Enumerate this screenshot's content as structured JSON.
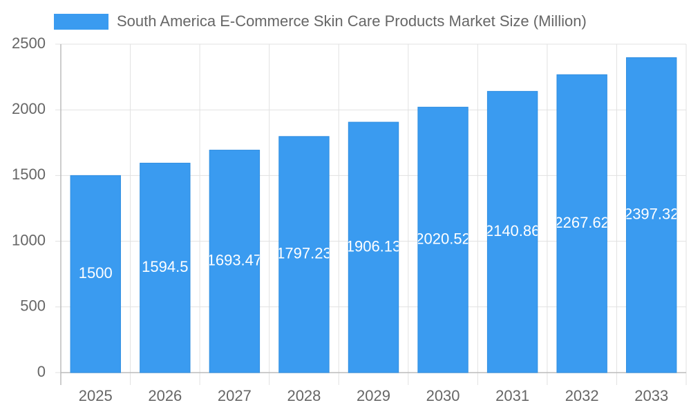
{
  "chart_data": {
    "type": "bar",
    "series": [
      {
        "name": "South America E-Commerce Skin Care Products Market Size (Million)",
        "color": "#3a9bf0",
        "values": [
          1500,
          1594.5,
          1693.47,
          1797.23,
          1906.13,
          2020.52,
          2140.86,
          2267.62,
          2397.32
        ]
      }
    ],
    "categories": [
      "2025",
      "2026",
      "2027",
      "2028",
      "2029",
      "2030",
      "2031",
      "2032",
      "2033"
    ],
    "ylim": [
      0,
      2500
    ],
    "yticks": [
      0,
      500,
      1000,
      1500,
      2000,
      2500
    ],
    "grid": true
  }
}
